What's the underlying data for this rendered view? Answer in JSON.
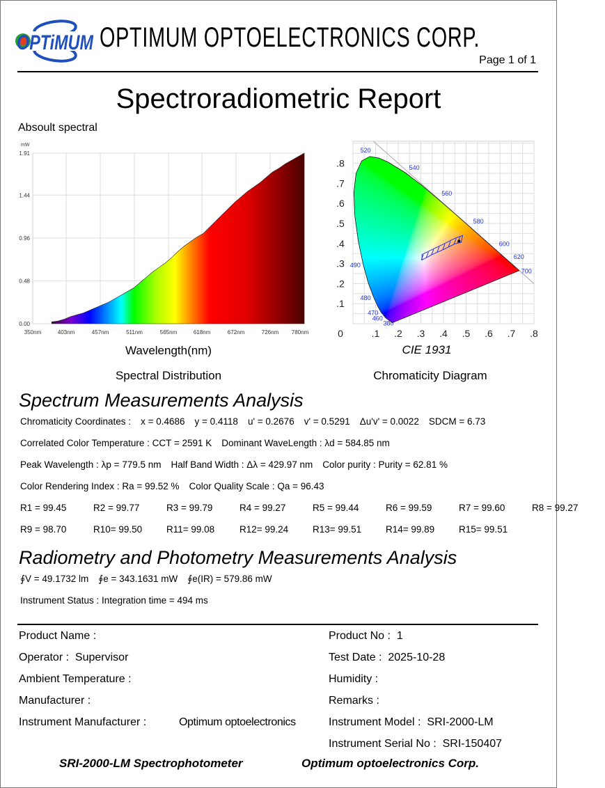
{
  "header": {
    "logo": {
      "text": "OPTiMUM",
      "color": "#1f4fbf"
    },
    "company": "OPTIMUM  OPTOELECTRONICS  CORP.",
    "page": "Page 1 of 1"
  },
  "report_title": "Spectroradiometric Report",
  "spectral_section_label": "Absoult spectral",
  "chart_captions": {
    "left": "Spectral Distribution",
    "right": "Chromaticity Diagram"
  },
  "chart_data": [
    {
      "type": "area",
      "title": "Absoult spectral",
      "xlabel": "Wavelength(nm)",
      "ylabel": "mW",
      "xlim": [
        350,
        780
      ],
      "ylim": [
        0,
        1.91
      ],
      "grid": true,
      "x_ticks": [
        "350nm",
        "403nm",
        "457nm",
        "511nm",
        "565nm",
        "618nm",
        "672nm",
        "726nm",
        "780nm"
      ],
      "x_tick_values": [
        350,
        403,
        457,
        511,
        565,
        618,
        672,
        726,
        780
      ],
      "y_ticks": [
        "0.00",
        "0.48",
        "0.96",
        "1.44",
        "1.91"
      ],
      "y_tick_values": [
        0,
        0.48,
        0.96,
        1.44,
        1.91
      ],
      "x": [
        380,
        390,
        400,
        410,
        420,
        430,
        440,
        450,
        460,
        470,
        480,
        490,
        500,
        510,
        520,
        530,
        540,
        550,
        560,
        570,
        580,
        590,
        600,
        610,
        620,
        630,
        640,
        650,
        660,
        670,
        680,
        690,
        700,
        710,
        720,
        730,
        740,
        750,
        760,
        770,
        780
      ],
      "values": [
        0.02,
        0.03,
        0.05,
        0.08,
        0.1,
        0.12,
        0.15,
        0.18,
        0.21,
        0.24,
        0.28,
        0.32,
        0.36,
        0.4,
        0.46,
        0.52,
        0.58,
        0.63,
        0.68,
        0.74,
        0.81,
        0.87,
        0.92,
        0.97,
        1.01,
        1.08,
        1.15,
        1.22,
        1.29,
        1.36,
        1.42,
        1.48,
        1.53,
        1.58,
        1.64,
        1.7,
        1.74,
        1.79,
        1.83,
        1.87,
        1.91
      ],
      "gradient_stops": [
        [
          380,
          "#3a0a3a"
        ],
        [
          410,
          "#7a00d0"
        ],
        [
          440,
          "#0000ff"
        ],
        [
          465,
          "#0080ff"
        ],
        [
          490,
          "#00ffff"
        ],
        [
          510,
          "#00ff00"
        ],
        [
          545,
          "#aaff00"
        ],
        [
          575,
          "#ffff00"
        ],
        [
          600,
          "#ff8800"
        ],
        [
          630,
          "#ff0000"
        ],
        [
          690,
          "#e00000"
        ],
        [
          730,
          "#a00000"
        ],
        [
          780,
          "#4a0000"
        ]
      ]
    },
    {
      "type": "scatter",
      "title": "CIE 1931",
      "xlim": [
        0,
        0.8
      ],
      "ylim": [
        0,
        0.91
      ],
      "x_ticks": [
        "0",
        ".1",
        ".2",
        ".3",
        ".4",
        ".5",
        ".6",
        ".7",
        ".8"
      ],
      "y_ticks": [
        ".1",
        ".2",
        ".3",
        ".4",
        ".5",
        ".6",
        ".7",
        ".8"
      ],
      "locus_labels": [
        {
          "nm": "520",
          "x": 0.0743,
          "y": 0.8338
        },
        {
          "nm": "540",
          "x": 0.2296,
          "y": 0.7543
        },
        {
          "nm": "560",
          "x": 0.3731,
          "y": 0.6245
        },
        {
          "nm": "580",
          "x": 0.5125,
          "y": 0.4866
        },
        {
          "nm": "600",
          "x": 0.627,
          "y": 0.3725
        },
        {
          "nm": "620",
          "x": 0.6915,
          "y": 0.3083
        },
        {
          "nm": "700",
          "x": 0.7347,
          "y": 0.2653
        },
        {
          "nm": "490",
          "x": 0.0454,
          "y": 0.295
        },
        {
          "nm": "480",
          "x": 0.0913,
          "y": 0.1327
        },
        {
          "nm": "470",
          "x": 0.1241,
          "y": 0.0578
        },
        {
          "nm": "460",
          "x": 0.144,
          "y": 0.0297
        },
        {
          "nm": "380",
          "x": 0.1741,
          "y": 0.005
        }
      ],
      "locus": [
        [
          0.1741,
          0.005
        ],
        [
          0.144,
          0.0297
        ],
        [
          0.1241,
          0.0578
        ],
        [
          0.1096,
          0.0868
        ],
        [
          0.0913,
          0.1327
        ],
        [
          0.0687,
          0.2007
        ],
        [
          0.0454,
          0.295
        ],
        [
          0.0235,
          0.4127
        ],
        [
          0.0082,
          0.5384
        ],
        [
          0.0039,
          0.6548
        ],
        [
          0.0139,
          0.7502
        ],
        [
          0.0389,
          0.812
        ],
        [
          0.0743,
          0.8338
        ],
        [
          0.1142,
          0.8262
        ],
        [
          0.1547,
          0.8059
        ],
        [
          0.2296,
          0.7543
        ],
        [
          0.3016,
          0.6923
        ],
        [
          0.3731,
          0.6245
        ],
        [
          0.4441,
          0.5547
        ],
        [
          0.5125,
          0.4866
        ],
        [
          0.5752,
          0.4242
        ],
        [
          0.627,
          0.3725
        ],
        [
          0.6915,
          0.3083
        ],
        [
          0.719,
          0.2809
        ],
        [
          0.7347,
          0.2653
        ]
      ],
      "planckian_band": {
        "upper": [
          [
            0.305,
            0.345
          ],
          [
            0.35,
            0.37
          ],
          [
            0.4,
            0.397
          ],
          [
            0.45,
            0.426
          ],
          [
            0.485,
            0.44
          ]
        ],
        "lower": [
          [
            0.305,
            0.318
          ],
          [
            0.35,
            0.345
          ],
          [
            0.4,
            0.37
          ],
          [
            0.45,
            0.398
          ],
          [
            0.478,
            0.406
          ]
        ]
      },
      "point": {
        "x": 0.4686,
        "y": 0.4118
      }
    }
  ],
  "spectrum_analysis": {
    "heading": "Spectrum Measurements Analysis",
    "chromaticity": {
      "label": "Chromaticity Coordinates :",
      "x": "x =  0.4686",
      "y": "y = 0.4118",
      "u": "u' = 0.2676",
      "v": "v' = 0.5291",
      "duv": "Δu'v' = 0.0022",
      "sdcm": "SDCM = 6.73"
    },
    "cct": "Correlated Color Temperature : CCT = 2591 K",
    "dominant": "Dominant WaveLength : λd = 584.85 nm",
    "peak": "Peak Wavelength : λp = 779.5 nm",
    "halfband": "Half Band Width : Δλ = 429.97 nm",
    "purity": "Color purity : Purity = 62.81 %",
    "cri": "Color Rendering Index : Ra = 99.52 %",
    "cqs": "Color Quality Scale : Qa = 96.43",
    "r_row1": [
      "R1 = 99.45",
      "R2 = 99.77",
      "R3 = 99.79",
      "R4 = 99.27",
      "R5 = 99.44",
      "R6 = 99.59",
      "R7 = 99.60",
      "R8 = 99.27"
    ],
    "r_row2": [
      "R9 = 98.70",
      "R10= 99.50",
      "R11= 99.08",
      "R12= 99.24",
      "R13= 99.51",
      "R14= 99.89",
      "R15= 99.51"
    ]
  },
  "radiometry": {
    "heading": "Radiometry and Photometry Measurements Analysis",
    "phiv": "∮V = 49.1732 lm",
    "phie": "∮e = 343.1631 mW",
    "phieir": "∮e(IR) = 579.86 mW",
    "status": "Instrument Status : Integration time = 494 ms"
  },
  "info": {
    "left": [
      {
        "label": "Product Name :",
        "value": ""
      },
      {
        "label": "Operator :",
        "value": "Supervisor"
      },
      {
        "label": "Ambient Temperature :",
        "value": ""
      },
      {
        "label": "Manufacturer :",
        "value": ""
      },
      {
        "label": "Instrument Manufacturer :",
        "value": "Optimum optoelectronics"
      }
    ],
    "right": [
      {
        "label": "Product No :",
        "value": "1"
      },
      {
        "label": "Test Date :",
        "value": "2025-10-28"
      },
      {
        "label": "Humidity :",
        "value": ""
      },
      {
        "label": "Remarks :",
        "value": ""
      },
      {
        "label": "Instrument Model :",
        "value": "SRI-2000-LM"
      },
      {
        "label": "Instrument Serial No :",
        "value": "SRI-150407"
      }
    ]
  },
  "footer": {
    "left": "SRI-2000-LM Spectrophotometer",
    "right": "Optimum optoelectronics Corp."
  }
}
